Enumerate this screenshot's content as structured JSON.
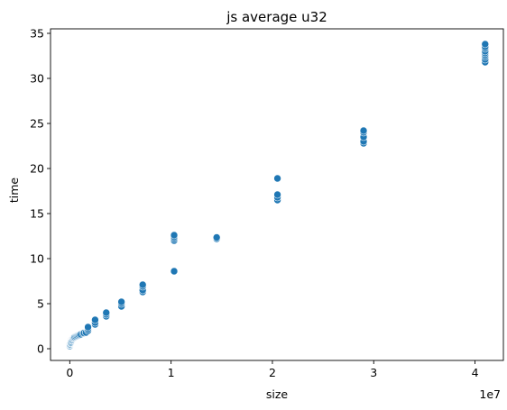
{
  "chart_data": {
    "type": "scatter",
    "title": "js average u32",
    "xlabel": "size",
    "ylabel": "time",
    "x_offset_label": "1e7",
    "xlim": [
      -1900000.0,
      42800000.0
    ],
    "ylim": [
      -1.3,
      35.5
    ],
    "xticks": [
      0,
      10000000.0,
      20000000.0,
      30000000.0,
      40000000.0
    ],
    "xtick_labels": [
      "0",
      "1",
      "2",
      "3",
      "4"
    ],
    "yticks": [
      0,
      5,
      10,
      15,
      20,
      25,
      30,
      35
    ],
    "ytick_labels": [
      "0",
      "5",
      "10",
      "15",
      "20",
      "25",
      "30",
      "35"
    ],
    "grid": false,
    "marker_color": "#1f77b4",
    "marker_edge": "#ffffff",
    "series": [
      {
        "points": [
          [
            0,
            0.3
          ],
          [
            0,
            0.4
          ],
          [
            0,
            0.5
          ],
          [
            10000,
            0.45
          ],
          [
            20000,
            0.5
          ],
          [
            50000,
            0.6
          ],
          [
            80000,
            0.65
          ],
          [
            100000,
            0.7
          ],
          [
            120000,
            0.8
          ],
          [
            150000,
            0.9
          ],
          [
            200000,
            0.95
          ],
          [
            250000,
            1.0
          ],
          [
            300000,
            1.1
          ],
          [
            350000,
            1.15
          ],
          [
            400000,
            1.2
          ],
          [
            450000,
            1.25
          ],
          [
            500000,
            1.3
          ],
          [
            600000,
            1.35
          ],
          [
            700000,
            1.4
          ],
          [
            800000,
            1.45
          ],
          [
            900000,
            1.5
          ],
          [
            1000000,
            1.55
          ],
          [
            1100000,
            1.6
          ],
          [
            1300000,
            1.7
          ],
          [
            1400000,
            1.75
          ],
          [
            1600000,
            1.8
          ],
          [
            1800000,
            2.0
          ],
          [
            1800000,
            2.2
          ],
          [
            1800000,
            2.4
          ],
          [
            2500000,
            2.7
          ],
          [
            2500000,
            2.9
          ],
          [
            2500000,
            3.2
          ],
          [
            3600000,
            3.6
          ],
          [
            3600000,
            3.8
          ],
          [
            3600000,
            4.0
          ],
          [
            5100000,
            4.7
          ],
          [
            5100000,
            5.0
          ],
          [
            5100000,
            5.2
          ],
          [
            7200000,
            6.3
          ],
          [
            7200000,
            6.5
          ],
          [
            7200000,
            6.9
          ],
          [
            7200000,
            7.1
          ],
          [
            10300000,
            8.6
          ],
          [
            10300000,
            12.0
          ],
          [
            10300000,
            12.2
          ],
          [
            10300000,
            12.4
          ],
          [
            10300000,
            12.6
          ],
          [
            14500000,
            12.2
          ],
          [
            14500000,
            12.35
          ],
          [
            20500000,
            16.5
          ],
          [
            20500000,
            16.8
          ],
          [
            20500000,
            17.1
          ],
          [
            20500000,
            18.9
          ],
          [
            29000000,
            22.8
          ],
          [
            29000000,
            23.0
          ],
          [
            29000000,
            23.5
          ],
          [
            29000000,
            24.0
          ],
          [
            29000000,
            24.2
          ],
          [
            41000000,
            31.8
          ],
          [
            41000000,
            32.1
          ],
          [
            41000000,
            32.4
          ],
          [
            41000000,
            32.6
          ],
          [
            41000000,
            32.8
          ],
          [
            41000000,
            33.0
          ],
          [
            41000000,
            33.3
          ],
          [
            41000000,
            33.5
          ],
          [
            41000000,
            33.8
          ]
        ]
      }
    ]
  }
}
